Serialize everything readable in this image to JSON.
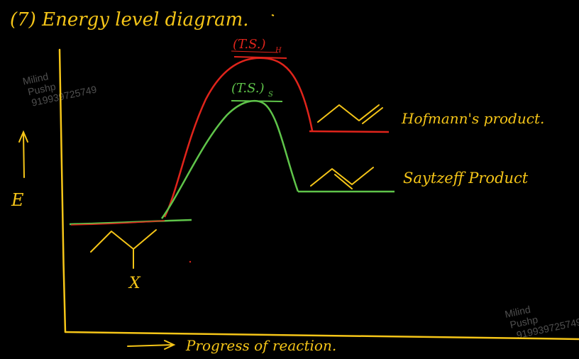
{
  "title": "(7) Energy level diagram.",
  "y_axis_label": "E",
  "x_axis_label": "Progress of reaction.",
  "ts_hofmann_label": "(T.S.)",
  "ts_hofmann_subscript": "H",
  "ts_saytzeff_label": "(T.S.)",
  "ts_saytzeff_subscript": "S",
  "hofmann_product_label": "Hofmann's product.",
  "saytzeff_product_label": "Saytzeff Product",
  "reactant_leaving_group": "X",
  "watermark": {
    "name_line1": "Milind",
    "name_line2": "Pushp",
    "number": "919939725749"
  },
  "colors": {
    "background": "#000000",
    "ink": "#f5c518",
    "hofmann_curve": "#e0241b",
    "saytzeff_curve": "#5fc44a",
    "watermark": "#6a6a6a"
  }
}
